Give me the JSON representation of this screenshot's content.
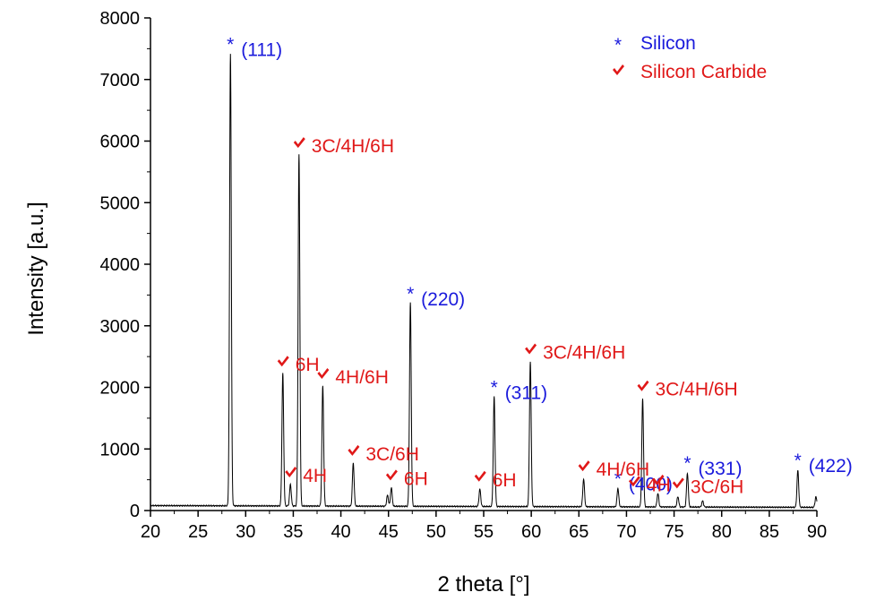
{
  "chart_data": {
    "type": "line",
    "xlabel": "2 theta [°]",
    "ylabel": "Intensity [a.u.]",
    "xlim": [
      20,
      90
    ],
    "ylim": [
      0,
      8000
    ],
    "x_ticks": [
      20,
      25,
      30,
      35,
      40,
      45,
      50,
      55,
      60,
      65,
      70,
      75,
      80,
      85,
      90
    ],
    "y_ticks": [
      0,
      1000,
      2000,
      3000,
      4000,
      5000,
      6000,
      7000,
      8000
    ],
    "x_tick_labels": [
      "20",
      "25",
      "30",
      "35",
      "40",
      "45",
      "50",
      "55",
      "60",
      "65",
      "70",
      "75",
      "80",
      "85",
      "90"
    ],
    "y_tick_labels": [
      "0",
      "1000",
      "2000",
      "3000",
      "4000",
      "5000",
      "6000",
      "7000",
      "8000"
    ],
    "grid": false,
    "legend_position": "top-right",
    "series": [
      {
        "color": "#000000",
        "baseline": 80,
        "peaks": [
          {
            "x": 28.4,
            "y": 7350
          },
          {
            "x": 33.9,
            "y": 2150
          },
          {
            "x": 34.7,
            "y": 350
          },
          {
            "x": 35.6,
            "y": 5700
          },
          {
            "x": 38.1,
            "y": 1950
          },
          {
            "x": 41.3,
            "y": 700
          },
          {
            "x": 44.9,
            "y": 180
          },
          {
            "x": 45.3,
            "y": 300
          },
          {
            "x": 47.3,
            "y": 3300
          },
          {
            "x": 54.6,
            "y": 280
          },
          {
            "x": 56.1,
            "y": 1780
          },
          {
            "x": 59.9,
            "y": 2350
          },
          {
            "x": 65.5,
            "y": 450
          },
          {
            "x": 69.1,
            "y": 300
          },
          {
            "x": 71.7,
            "y": 1750
          },
          {
            "x": 73.3,
            "y": 220
          },
          {
            "x": 75.4,
            "y": 170
          },
          {
            "x": 76.4,
            "y": 550
          },
          {
            "x": 78.0,
            "y": 100
          },
          {
            "x": 88.0,
            "y": 600
          },
          {
            "x": 89.9,
            "y": 170
          }
        ]
      }
    ],
    "legend": [
      {
        "marker": "*",
        "label": "Silicon",
        "color": "#1a1adc"
      },
      {
        "marker": "check",
        "label": "Silicon Carbide",
        "color": "#e01818"
      }
    ],
    "annotations": [
      {
        "kind": "si",
        "text": "(111)",
        "x": 28.4,
        "y": 7350
      },
      {
        "kind": "si",
        "text": "(220)",
        "x": 47.3,
        "y": 3300
      },
      {
        "kind": "si",
        "text": "(311)",
        "x": 56.1,
        "y": 1780
      },
      {
        "kind": "si",
        "text": "(400)",
        "x": 69.1,
        "y": 300
      },
      {
        "kind": "si",
        "text": "(331)",
        "x": 76.4,
        "y": 550
      },
      {
        "kind": "si",
        "text": "(422)",
        "x": 88.0,
        "y": 600
      },
      {
        "kind": "sic",
        "text": "3C/4H/6H",
        "x": 35.6,
        "y": 5700
      },
      {
        "kind": "sic",
        "text": "6H",
        "x": 33.9,
        "y": 2150
      },
      {
        "kind": "sic",
        "text": "4H",
        "x": 34.7,
        "y": 350
      },
      {
        "kind": "sic",
        "text": "4H/6H",
        "x": 38.1,
        "y": 1950
      },
      {
        "kind": "sic",
        "text": "3C/6H",
        "x": 41.3,
        "y": 700
      },
      {
        "kind": "sic",
        "text": "6H",
        "x": 45.3,
        "y": 300
      },
      {
        "kind": "sic",
        "text": "6H",
        "x": 54.6,
        "y": 280
      },
      {
        "kind": "sic",
        "text": "3C/4H/6H",
        "x": 59.9,
        "y": 2350
      },
      {
        "kind": "sic",
        "text": "4H/6H",
        "x": 65.5,
        "y": 450
      },
      {
        "kind": "sic",
        "text": "4H",
        "x": 70.8,
        "y": 200
      },
      {
        "kind": "sic",
        "text": "3C/4H/6H",
        "x": 71.7,
        "y": 1750
      },
      {
        "kind": "sic",
        "text": "",
        "x": 73.3,
        "y": 220
      },
      {
        "kind": "sic",
        "text": "3C/6H",
        "x": 75.4,
        "y": 170
      }
    ]
  }
}
